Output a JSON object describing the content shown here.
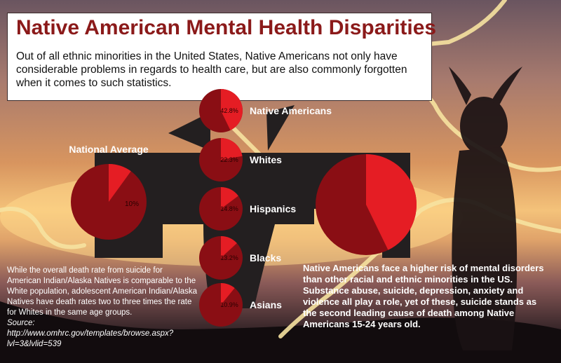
{
  "title": "Native American Mental Health Disparities",
  "intro": "Out of all ethnic minorities in the United States, Native Americans not only have considerable problems in regards to health care, but are also commonly forgotten when it comes to such statistics.",
  "left_note": "While the overall death rate from suicide for American Indian/Alaska Natives is comparable to the White population, adolescent American Indian/Alaska Natives have death rates two to three times the rate for Whites in the same age groups.",
  "source_label": "Source:",
  "source_url": "http://www.omhrc.gov/templates/browse.aspx?lvl=3&lvlid=539",
  "right_note": "Native Americans face a higher risk of mental disorders than other racial and ethnic minorities in the US.  Substance abuse, suicide, depression, anxiety and violence all play a role, yet of these, suicide stands as the second leading cause of death among Native Americans 15-24 years old.",
  "colors": {
    "slice": "#e51d24",
    "rest": "#8a0e14",
    "figure": "#231f20",
    "title": "#8b1a1a"
  },
  "chart_data": {
    "type": "pie",
    "series": [
      {
        "name": "Native Americans",
        "value": 42.8,
        "label": "42.8%"
      },
      {
        "name": "Whites",
        "value": 22.3,
        "label": "22.3%"
      },
      {
        "name": "Hispanics",
        "value": 14.8,
        "label": "14.8%"
      },
      {
        "name": "Blacks",
        "value": 13.2,
        "label": "13.2%"
      },
      {
        "name": "Asians",
        "value": 10.9,
        "label": "10.9%"
      }
    ],
    "national_average": {
      "name": "National Average",
      "value": 10,
      "label": "10%"
    },
    "large_pie": {
      "value": 42.8
    }
  }
}
